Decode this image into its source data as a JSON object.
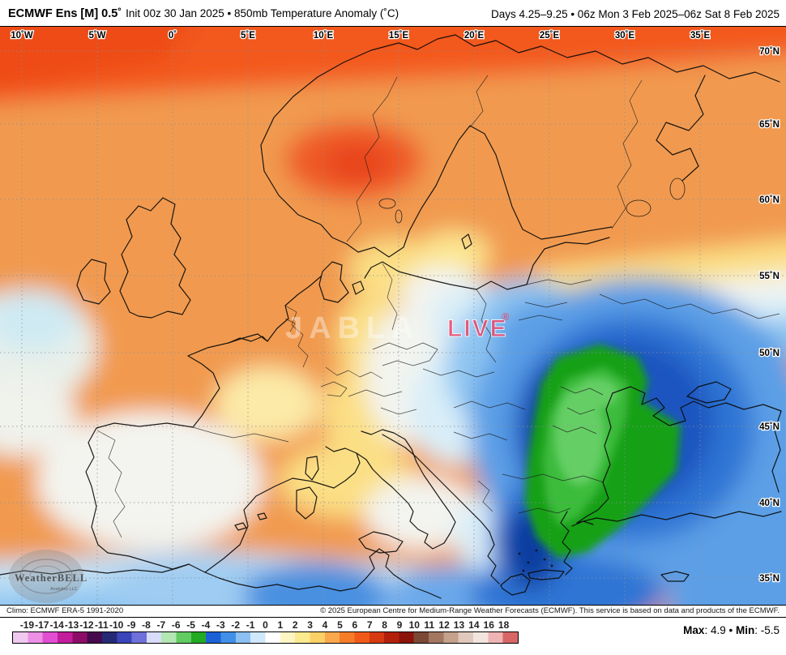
{
  "header": {
    "title_model": "ECMWF Ens [M] 0.5˚",
    "title_desc": "Init 00z 30 Jan 2025 • 850mb Temperature Anomaly (˚C)",
    "valid": "Days 4.25–9.25 • 06z Mon 3 Feb 2025–06z Sat 8 Feb 2025"
  },
  "map": {
    "lon_labels": [
      "10˚W",
      "5˚W",
      "0˚",
      "5˚E",
      "10˚E",
      "15˚E",
      "20˚E",
      "25˚E",
      "30˚E",
      "35˚E"
    ],
    "lat_labels": [
      "70˚N",
      "65˚N",
      "60˚N",
      "55˚N",
      "50˚N",
      "45˚N",
      "40˚N",
      "35˚N"
    ],
    "watermarks": {
      "brand": "JABLA",
      "live": "LIVE",
      "reg": "®",
      "logo_main": "WeatherBELL",
      "logo_sub": "Analytics LLC"
    }
  },
  "footer": {
    "climo": "Climo: ECMWF ERA-5 1991-2020",
    "copyright": "© 2025 European Centre for Medium-Range Weather Forecasts (ECMWF). This service is based on data and products of the ECMWF."
  },
  "colorbar": {
    "ticks": [
      "-19",
      "-17",
      "-14",
      "-13",
      "-12",
      "-11",
      "-10",
      "-9",
      "-8",
      "-7",
      "-6",
      "-5",
      "-4",
      "-3",
      "-2",
      "-1",
      "0",
      "1",
      "2",
      "3",
      "4",
      "5",
      "6",
      "7",
      "8",
      "9",
      "10",
      "11",
      "12",
      "13",
      "14",
      "16",
      "18"
    ],
    "colors": [
      "#f0c9ef",
      "#ed8fe5",
      "#e14ed2",
      "#c21d9c",
      "#8d0d66",
      "#47094d",
      "#262a74",
      "#3a45ba",
      "#6e71d9",
      "#d8dcf8",
      "#b2e6b2",
      "#62cc62",
      "#22aa22",
      "#1b61d6",
      "#4090e8",
      "#8cc0f2",
      "#cfe8fb",
      "#ffffff",
      "#fdf6c3",
      "#fceb8e",
      "#fbd167",
      "#f9a84d",
      "#f67d27",
      "#f05a18",
      "#d63a10",
      "#b2200c",
      "#8c130a",
      "#7c4836",
      "#a2765f",
      "#c4a18c",
      "#e0c9bc",
      "#f2e4de",
      "#eeb4b4",
      "#d96666"
    ]
  },
  "stats": {
    "max_label": "Max",
    "min_label": "Min",
    "max_value": "4.9",
    "min_value": "-5.5",
    "colon": ": ",
    "bullet": " • "
  }
}
